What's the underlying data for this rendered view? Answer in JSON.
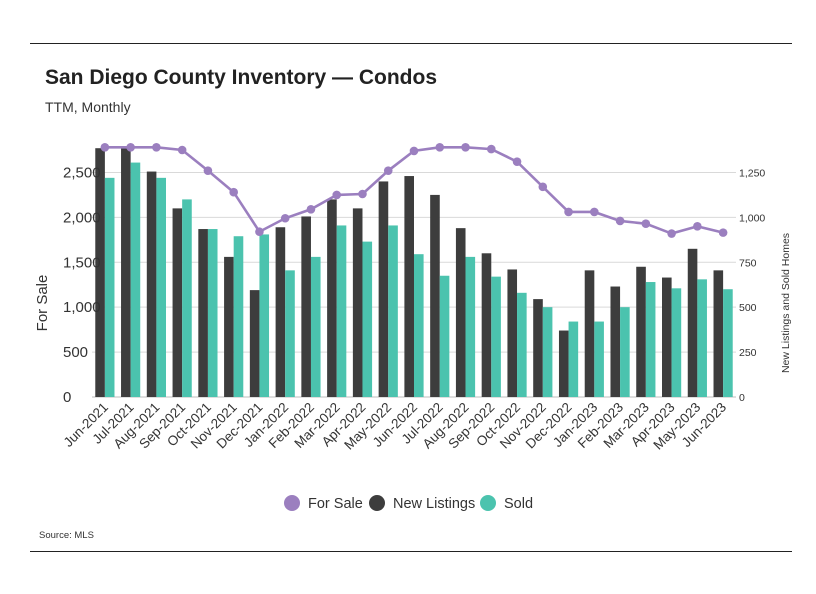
{
  "header": {
    "title": "San Diego County Inventory — Condos",
    "subtitle": "TTM, Monthly"
  },
  "footer": {
    "source": "Source: MLS"
  },
  "colors": {
    "for_sale": "#9b7fbf",
    "new_listings": "#3d3d3d",
    "sold": "#4bc3ae",
    "grid": "#d9d9d9"
  },
  "chart_data": {
    "type": "bar",
    "title": "San Diego County Inventory — Condos",
    "subtitle": "TTM, Monthly",
    "categories": [
      "Jun-2021",
      "Jul-2021",
      "Aug-2021",
      "Sep-2021",
      "Oct-2021",
      "Nov-2021",
      "Dec-2021",
      "Jan-2022",
      "Feb-2022",
      "Mar-2022",
      "Apr-2022",
      "May-2022",
      "Jun-2022",
      "Jul-2022",
      "Aug-2022",
      "Sep-2022",
      "Oct-2022",
      "Nov-2022",
      "Dec-2022",
      "Jan-2023",
      "Feb-2023",
      "Mar-2023",
      "Apr-2023",
      "May-2023",
      "Jun-2023"
    ],
    "ylabel": "For Sale",
    "y2label": "New Listings and Sold Homes",
    "ylim": [
      0,
      2750
    ],
    "yticks": [
      0,
      500,
      1000,
      1500,
      2000,
      2500
    ],
    "ytick_labels": [
      "0",
      "500",
      "1,000",
      "1,500",
      "2,000",
      "2,500"
    ],
    "y2lim": [
      0,
      1375
    ],
    "y2ticks": [
      0,
      250,
      500,
      750,
      1000,
      1250
    ],
    "y2tick_labels": [
      "0",
      "250",
      "500",
      "750",
      "1,000",
      "1,250"
    ],
    "grid": true,
    "legend_position": "bottom",
    "series": [
      {
        "name": "For Sale",
        "kind": "line",
        "axis": "left",
        "values": [
          2780,
          2780,
          2780,
          2750,
          2520,
          2280,
          1840,
          1990,
          2090,
          2250,
          2260,
          2520,
          2740,
          2780,
          2780,
          2760,
          2620,
          2340,
          2060,
          2060,
          1960,
          1930,
          1820,
          1900,
          1830
        ]
      },
      {
        "name": "New Listings",
        "kind": "bar",
        "axis": "right",
        "values": [
          1385,
          1385,
          1255,
          1050,
          935,
          780,
          595,
          945,
          1005,
          1100,
          1050,
          1200,
          1230,
          1125,
          940,
          800,
          710,
          545,
          370,
          705,
          615,
          725,
          665,
          825,
          705
        ]
      },
      {
        "name": "Sold",
        "kind": "bar",
        "axis": "right",
        "values": [
          1220,
          1305,
          1220,
          1100,
          935,
          895,
          905,
          705,
          780,
          955,
          865,
          955,
          795,
          675,
          780,
          670,
          580,
          500,
          420,
          420,
          500,
          640,
          605,
          655,
          600
        ]
      }
    ]
  }
}
